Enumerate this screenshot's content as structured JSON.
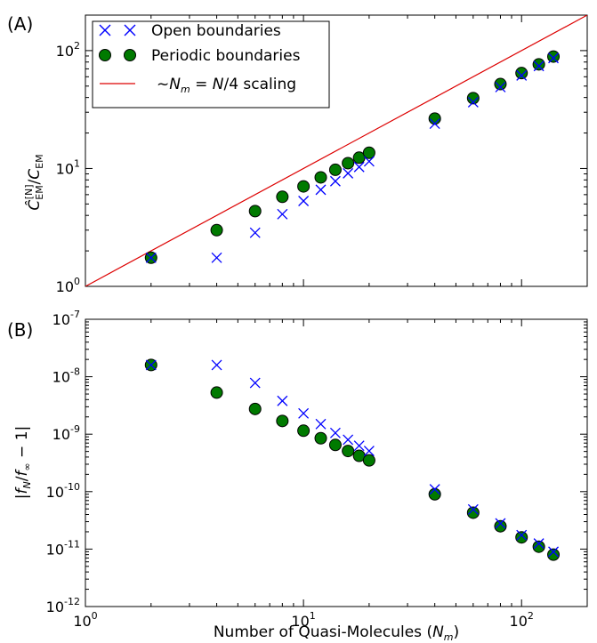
{
  "chart_data": [
    {
      "type": "scatter",
      "panel_label": "(A)",
      "xscale": "log",
      "yscale": "log",
      "xlim": [
        1,
        200
      ],
      "ylim": [
        1,
        200
      ],
      "xticks": [
        1,
        10,
        100
      ],
      "xtick_labels": [
        "",
        "",
        ""
      ],
      "yticks": [
        1,
        10,
        100
      ],
      "ytick_labels": [
        {
          "base": "10",
          "exp": "0"
        },
        {
          "base": "10",
          "exp": "1"
        },
        {
          "base": "10",
          "exp": "2"
        }
      ],
      "xlabel": "",
      "ylabel": "Ĉ_EM^[N] / C_EM",
      "legend_position": "top-left",
      "series": [
        {
          "name": "Open boundaries",
          "marker": "x",
          "color": "#0000ff",
          "x": [
            2,
            4,
            6,
            8,
            10,
            12,
            14,
            16,
            18,
            20,
            40,
            60,
            80,
            100,
            120,
            140
          ],
          "y": [
            1.75,
            1.75,
            2.85,
            4.1,
            5.3,
            6.6,
            7.8,
            9.1,
            10.3,
            11.5,
            24.0,
            36.5,
            49.0,
            61.5,
            74.0,
            86.5
          ]
        },
        {
          "name": "Periodic boundaries",
          "marker": "o",
          "color": "#007a00",
          "x": [
            2,
            4,
            6,
            8,
            10,
            12,
            14,
            16,
            18,
            20,
            40,
            60,
            80,
            100,
            120,
            140
          ],
          "y": [
            1.75,
            3.0,
            4.35,
            5.75,
            7.05,
            8.4,
            9.75,
            11.1,
            12.35,
            13.6,
            26.5,
            39.5,
            52.0,
            64.5,
            76.5,
            89.0
          ]
        },
        {
          "name": "~N_m = N/4 scaling",
          "marker": "line",
          "color": "#dd0000",
          "x": [
            1,
            200
          ],
          "y": [
            1,
            200
          ]
        }
      ],
      "legend_labels": [
        {
          "text": "Open boundaries"
        },
        {
          "text": "Periodic boundaries"
        },
        {
          "prefix": "~",
          "italic_n": "N",
          "sub": "m",
          "middle": " = ",
          "italic_n2": "N",
          "tail": "/4",
          "suffix": " scaling"
        }
      ],
      "ylabel_parts": {
        "C": "Ĉ",
        "sub": "EM",
        "sup": "[N]",
        "slash": "/",
        "C2": "C",
        "sub2": "EM"
      }
    },
    {
      "type": "scatter",
      "panel_label": "(B)",
      "xscale": "log",
      "yscale": "log",
      "xlim": [
        1,
        200
      ],
      "ylim": [
        1e-12,
        1e-07
      ],
      "xticks": [
        1,
        10,
        100
      ],
      "xtick_labels": [
        {
          "base": "10",
          "exp": "0"
        },
        {
          "base": "10",
          "exp": "1"
        },
        {
          "base": "10",
          "exp": "2"
        }
      ],
      "yticks": [
        1e-12,
        1e-11,
        1e-10,
        1e-09,
        1e-08,
        1e-07
      ],
      "ytick_labels": [
        {
          "base": "10",
          "exp": "-12"
        },
        {
          "base": "10",
          "exp": "-11"
        },
        {
          "base": "10",
          "exp": "-10"
        },
        {
          "base": "10",
          "exp": "-9"
        },
        {
          "base": "10",
          "exp": "-8"
        },
        {
          "base": "10",
          "exp": "-7"
        }
      ],
      "xlabel": "Number of Quasi-Molecules",
      "xlabel_math": {
        "open": "(",
        "N": "N",
        "sub": "m",
        "close": ")"
      },
      "ylabel": "|f_N / f_∞ − 1|",
      "ylabel_parts": {
        "bar": "|",
        "f": "f",
        "sub": "N",
        "slash": "/",
        "f2": "f",
        "sub2": "∞",
        "minus": " − 1",
        "bar2": "|"
      },
      "series": [
        {
          "name": "Open boundaries",
          "marker": "x",
          "color": "#0000ff",
          "x": [
            2,
            4,
            6,
            8,
            10,
            12,
            14,
            16,
            18,
            20,
            40,
            60,
            80,
            100,
            120,
            140
          ],
          "y": [
            1.6e-08,
            1.6e-08,
            7.8e-09,
            3.8e-09,
            2.3e-09,
            1.5e-09,
            1.05e-09,
            8e-10,
            6.3e-10,
            5.1e-10,
            1.1e-10,
            4.9e-11,
            2.8e-11,
            1.75e-11,
            1.25e-11,
            9e-12
          ]
        },
        {
          "name": "Periodic boundaries",
          "marker": "o",
          "color": "#007a00",
          "x": [
            2,
            4,
            6,
            8,
            10,
            12,
            14,
            16,
            18,
            20,
            40,
            60,
            80,
            100,
            120,
            140
          ],
          "y": [
            1.6e-08,
            5.3e-09,
            2.75e-09,
            1.7e-09,
            1.15e-09,
            8.5e-10,
            6.5e-10,
            5.1e-10,
            4.2e-10,
            3.5e-10,
            9e-11,
            4.3e-11,
            2.5e-11,
            1.6e-11,
            1.1e-11,
            8e-12
          ]
        }
      ]
    }
  ]
}
